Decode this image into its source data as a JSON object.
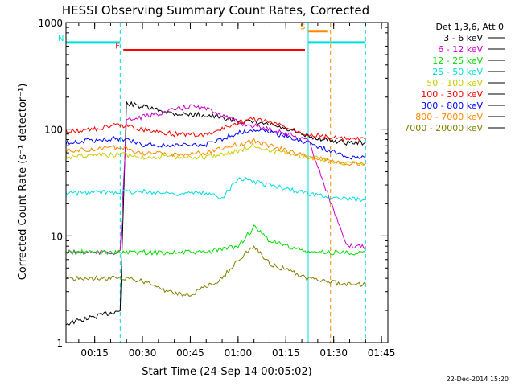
{
  "figure": {
    "footer_date": "22-Dec-2014 15:20"
  },
  "chart_data": {
    "type": "line",
    "title": "HESSI Observing Summary Count Rates, Corrected",
    "xlabel": "Start Time (24-Sep-14 00:05:02)",
    "ylabel": "Corrected Count Rate (s⁻¹ detector⁻¹)",
    "xlim": [
      "00:06",
      "01:47"
    ],
    "ylim": [
      1,
      1000
    ],
    "yscale": "log",
    "x_ticks": [
      "00:15",
      "00:30",
      "00:45",
      "01:00",
      "01:15",
      "01:30",
      "01:45"
    ],
    "y_ticks": [
      {
        "value": 1,
        "label": "1"
      },
      {
        "value": 10,
        "label": "10"
      },
      {
        "value": 100,
        "label": "100"
      },
      {
        "value": 1000,
        "label": "1000"
      }
    ],
    "legend": {
      "title": "Det 1,3,6, Att 0",
      "placement": "right-outside",
      "entries": [
        "3 - 6 keV",
        "6 - 12 keV",
        "12 - 25 keV",
        "25 - 50 keV",
        "50 - 100 keV",
        "100 - 300 keV",
        "300 - 800 keV",
        "800 - 7000 keV",
        "7000 - 20000 keV"
      ]
    },
    "series": [
      {
        "name": "3 - 6 keV",
        "color": "#000000",
        "x": [
          "00:06",
          "00:23",
          "00:25",
          "00:40",
          "00:50",
          "01:00",
          "01:10",
          "01:15",
          "01:22",
          "01:34",
          "01:40"
        ],
        "y": [
          1.5,
          2.0,
          175,
          140,
          135,
          120,
          110,
          100,
          85,
          75,
          75
        ]
      },
      {
        "name": "6 - 12 keV",
        "color": "#cc00cc",
        "x": [
          "00:06",
          "00:23",
          "00:25",
          "00:35",
          "00:45",
          "00:52",
          "01:00",
          "01:10",
          "01:22",
          "01:34",
          "01:40"
        ],
        "y": [
          7,
          7,
          120,
          140,
          165,
          150,
          115,
          100,
          80,
          8,
          8
        ]
      },
      {
        "name": "12 - 25 keV",
        "color": "#00dd00",
        "x": [
          "00:06",
          "00:23",
          "00:30",
          "00:40",
          "00:50",
          "01:00",
          "01:05",
          "01:10",
          "01:22",
          "01:34",
          "01:40"
        ],
        "y": [
          7,
          7,
          7,
          7,
          7,
          8,
          12,
          9,
          7,
          7,
          7
        ]
      },
      {
        "name": "25 - 50 keV",
        "color": "#00dddd",
        "x": [
          "00:06",
          "00:23",
          "00:30",
          "00:40",
          "00:50",
          "00:55",
          "01:00",
          "01:10",
          "01:22",
          "01:34",
          "01:40"
        ],
        "y": [
          25,
          26,
          26,
          25,
          25,
          23,
          35,
          30,
          25,
          22,
          22
        ]
      },
      {
        "name": "50 - 100 keV",
        "color": "#cccc00",
        "x": [
          "00:06",
          "00:23",
          "00:30",
          "00:40",
          "00:50",
          "01:00",
          "01:05",
          "01:10",
          "01:22",
          "01:34",
          "01:40"
        ],
        "y": [
          55,
          58,
          55,
          55,
          55,
          62,
          72,
          62,
          55,
          48,
          48
        ]
      },
      {
        "name": "100 - 300 keV",
        "color": "#ff0000",
        "x": [
          "00:06",
          "00:15",
          "00:23",
          "00:30",
          "00:40",
          "00:50",
          "01:00",
          "01:05",
          "01:10",
          "01:22",
          "01:34",
          "01:40"
        ],
        "y": [
          95,
          100,
          110,
          100,
          90,
          88,
          115,
          125,
          115,
          90,
          80,
          80
        ]
      },
      {
        "name": "300 - 800 keV",
        "color": "#0000ff",
        "x": [
          "00:06",
          "00:23",
          "00:30",
          "00:40",
          "00:50",
          "01:00",
          "01:05",
          "01:10",
          "01:22",
          "01:34",
          "01:40"
        ],
        "y": [
          75,
          82,
          72,
          70,
          72,
          92,
          100,
          95,
          75,
          55,
          55
        ]
      },
      {
        "name": "800 - 7000 keV",
        "color": "#ff8800",
        "x": [
          "00:06",
          "00:23",
          "00:30",
          "00:40",
          "00:50",
          "01:00",
          "01:05",
          "01:10",
          "01:22",
          "01:34",
          "01:40"
        ],
        "y": [
          62,
          68,
          60,
          58,
          60,
          72,
          78,
          70,
          55,
          48,
          48
        ]
      },
      {
        "name": "7000 - 20000 keV",
        "color": "#808000",
        "x": [
          "00:06",
          "00:23",
          "00:30",
          "00:38",
          "00:45",
          "00:55",
          "01:00",
          "01:05",
          "01:10",
          "01:22",
          "01:34",
          "01:40"
        ],
        "y": [
          4,
          4,
          3.8,
          3,
          2.8,
          4,
          6,
          8,
          5.5,
          4,
          3.5,
          3.5
        ]
      }
    ],
    "flag_bars": [
      {
        "label": "N",
        "color": "#00dddd",
        "x_start": "00:06",
        "x_end": "00:23",
        "level": 650
      },
      {
        "label": "F",
        "color": "#ff0000",
        "x_start": "00:24",
        "x_end": "01:21",
        "level": 550
      },
      {
        "label": "",
        "color": "#00dddd",
        "x_start": "01:22",
        "x_end": "01:40",
        "level": 650
      },
      {
        "label": "S",
        "color": "#ff8800",
        "x_start": "01:22",
        "x_end": "01:28",
        "level": 830
      }
    ],
    "vertical_markers": [
      {
        "x": "00:23",
        "color": "#00dddd",
        "style": "dashed"
      },
      {
        "x": "01:22",
        "color": "#00dddd",
        "style": "solid"
      },
      {
        "x": "01:29",
        "color": "#ff8800",
        "style": "dashed"
      },
      {
        "x": "01:40",
        "color": "#00dddd",
        "style": "dashed"
      }
    ],
    "grid": false
  }
}
